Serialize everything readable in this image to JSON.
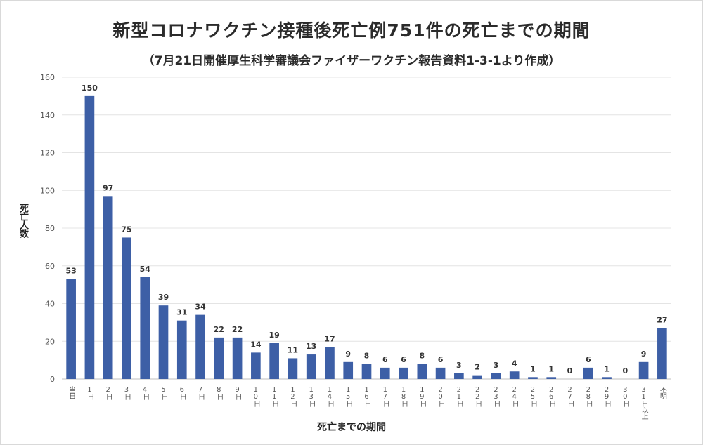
{
  "chart_data": {
    "type": "bar",
    "title": "新型コロナワクチン接種後死亡例751件の死亡までの期間",
    "subtitle": "（7月21日開催厚生科学審議会ファイザーワクチン報告資料1-3-1より作成）",
    "xlabel": "死亡までの期間",
    "ylabel": "死亡人数",
    "ylim": [
      0,
      160
    ],
    "yticks": [
      0,
      20,
      40,
      60,
      80,
      100,
      120,
      140,
      160
    ],
    "grid": true,
    "bar_color": "#3d5fa6",
    "categories": [
      "当日",
      "1日",
      "2日",
      "3日",
      "4日",
      "5日",
      "6日",
      "7日",
      "8日",
      "9日",
      "10日",
      "11日",
      "12日",
      "13日",
      "14日",
      "15日",
      "16日",
      "17日",
      "18日",
      "19日",
      "20日",
      "21日",
      "22日",
      "23日",
      "24日",
      "25日",
      "26日",
      "27日",
      "28日",
      "29日",
      "30日",
      "31日以上",
      "不明"
    ],
    "values": [
      53,
      150,
      97,
      75,
      54,
      39,
      31,
      34,
      22,
      22,
      14,
      19,
      11,
      13,
      17,
      9,
      8,
      6,
      6,
      8,
      6,
      3,
      2,
      3,
      4,
      1,
      1,
      0,
      6,
      1,
      0,
      9,
      27
    ]
  }
}
